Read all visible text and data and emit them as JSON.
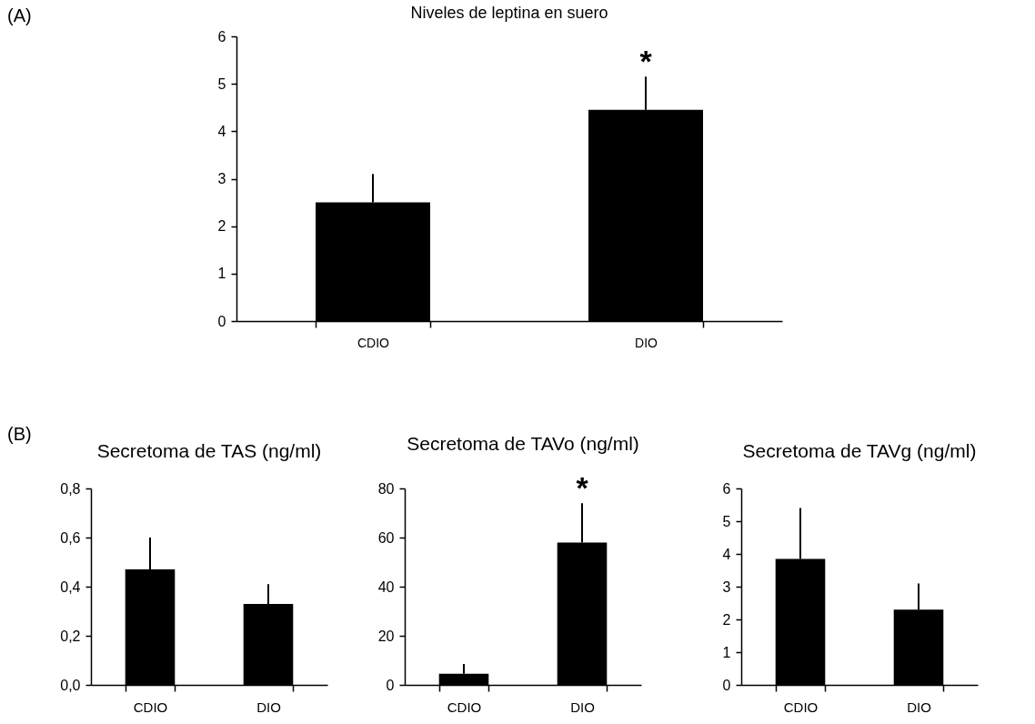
{
  "chart_data": [
    {
      "type": "bar",
      "title": "Niveles de leptina en suero",
      "categories": [
        "CDIO",
        "DIO"
      ],
      "values": [
        2.5,
        4.45
      ],
      "color": "#000000",
      "errors": [
        [
          2.5,
          3.1
        ],
        [
          4.45,
          5.15
        ]
      ],
      "ylim": [
        0,
        6
      ],
      "yticks": [
        0,
        1,
        2,
        3,
        4,
        5,
        6
      ],
      "grid": false,
      "annotations": [
        "(A)",
        {
          "text": "*",
          "x": "DIO",
          "y": 5.15
        }
      ]
    },
    {
      "type": "bar",
      "title": "Secretoma de TAS (ng/ml)",
      "categories": [
        "CDIO",
        "DIO"
      ],
      "values": [
        0.47,
        0.33
      ],
      "color": "#000000",
      "errors": [
        [
          0.47,
          0.6
        ],
        [
          0.33,
          0.41
        ]
      ],
      "ylim": [
        0,
        0.8
      ],
      "yticks": [
        {
          "value": 0,
          "label": "0,0"
        },
        {
          "value": 0.2,
          "label": "0,2"
        },
        {
          "value": 0.4,
          "label": "0,4"
        },
        {
          "value": 0.6,
          "label": "0,6"
        },
        {
          "value": 0.8,
          "label": "0,8"
        }
      ],
      "grid": false,
      "annotations": [
        "(B)"
      ]
    },
    {
      "type": "bar",
      "title": "Secretoma de TAVo (ng/ml)",
      "categories": [
        "CDIO",
        "DIO"
      ],
      "values": [
        4.5,
        58
      ],
      "color": "#000000",
      "errors": [
        [
          4.5,
          8.5
        ],
        [
          58,
          74
        ]
      ],
      "ylim": [
        0,
        80
      ],
      "yticks": [
        0,
        20,
        40,
        60,
        80
      ],
      "grid": false,
      "annotations": [
        {
          "text": "*",
          "x": "DIO",
          "y": 74
        }
      ]
    },
    {
      "type": "bar",
      "title": "Secretoma de TAVg (ng/ml)",
      "categories": [
        "CDIO",
        "DIO"
      ],
      "values": [
        3.85,
        2.3
      ],
      "color": "#000000",
      "errors": [
        [
          3.85,
          5.4
        ],
        [
          2.3,
          3.1
        ]
      ],
      "ylim": [
        0,
        6
      ],
      "yticks": [
        0,
        1,
        2,
        3,
        4,
        5,
        6
      ],
      "grid": false
    }
  ]
}
